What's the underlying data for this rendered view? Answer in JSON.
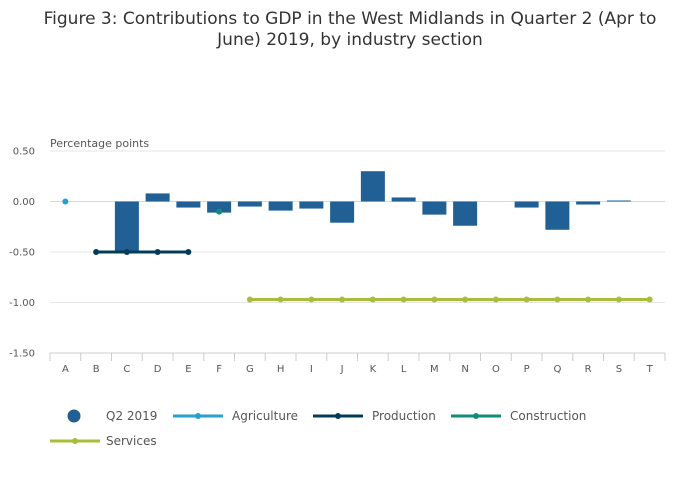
{
  "chart_data": {
    "type": "bar",
    "title_lines": [
      "Figure 3: Contributions to GDP in the West Midlands in Quarter 2 (Apr to",
      "June) 2019, by industry section"
    ],
    "ylabel": "Percentage points",
    "ylim": [
      -1.5,
      0.5
    ],
    "yticks": [
      0.5,
      0.0,
      -0.5,
      -1.0,
      -1.5
    ],
    "ytick_labels": [
      "0.50",
      "0.00",
      "-0.50",
      "-1.00",
      "-1.50"
    ],
    "categories": [
      "A",
      "B",
      "C",
      "D",
      "E",
      "F",
      "G",
      "H",
      "I",
      "J",
      "K",
      "L",
      "M",
      "N",
      "O",
      "P",
      "Q",
      "R",
      "S",
      "T"
    ],
    "bar_series": {
      "name": "Q2 2019",
      "color": "#206095",
      "values": [
        0.0,
        0.0,
        -0.5,
        0.08,
        -0.06,
        -0.11,
        -0.05,
        -0.09,
        -0.07,
        -0.21,
        0.3,
        0.04,
        -0.13,
        -0.24,
        0.0,
        -0.06,
        -0.28,
        -0.03,
        0.01,
        0.0
      ]
    },
    "line_series": [
      {
        "name": "Agriculture",
        "color": "#27a0cc",
        "x": [
          "A"
        ],
        "values": [
          0.0
        ]
      },
      {
        "name": "Production",
        "color": "#003c57",
        "x": [
          "B",
          "C",
          "D",
          "E"
        ],
        "values": [
          -0.5,
          -0.5,
          -0.5,
          -0.5
        ]
      },
      {
        "name": "Construction",
        "color": "#118c7b",
        "x": [
          "F"
        ],
        "values": [
          -0.1
        ]
      },
      {
        "name": "Services",
        "color": "#a8bd3a",
        "x": [
          "G",
          "H",
          "I",
          "J",
          "K",
          "L",
          "M",
          "N",
          "O",
          "P",
          "Q",
          "R",
          "S",
          "T"
        ],
        "values": [
          -0.97,
          -0.97,
          -0.97,
          -0.97,
          -0.97,
          -0.97,
          -0.97,
          -0.97,
          -0.97,
          -0.97,
          -0.97,
          -0.97,
          -0.97,
          -0.97
        ]
      }
    ],
    "legend": [
      "Q2 2019",
      "Agriculture",
      "Production",
      "Construction",
      "Services"
    ],
    "legend_position": "bottom"
  }
}
